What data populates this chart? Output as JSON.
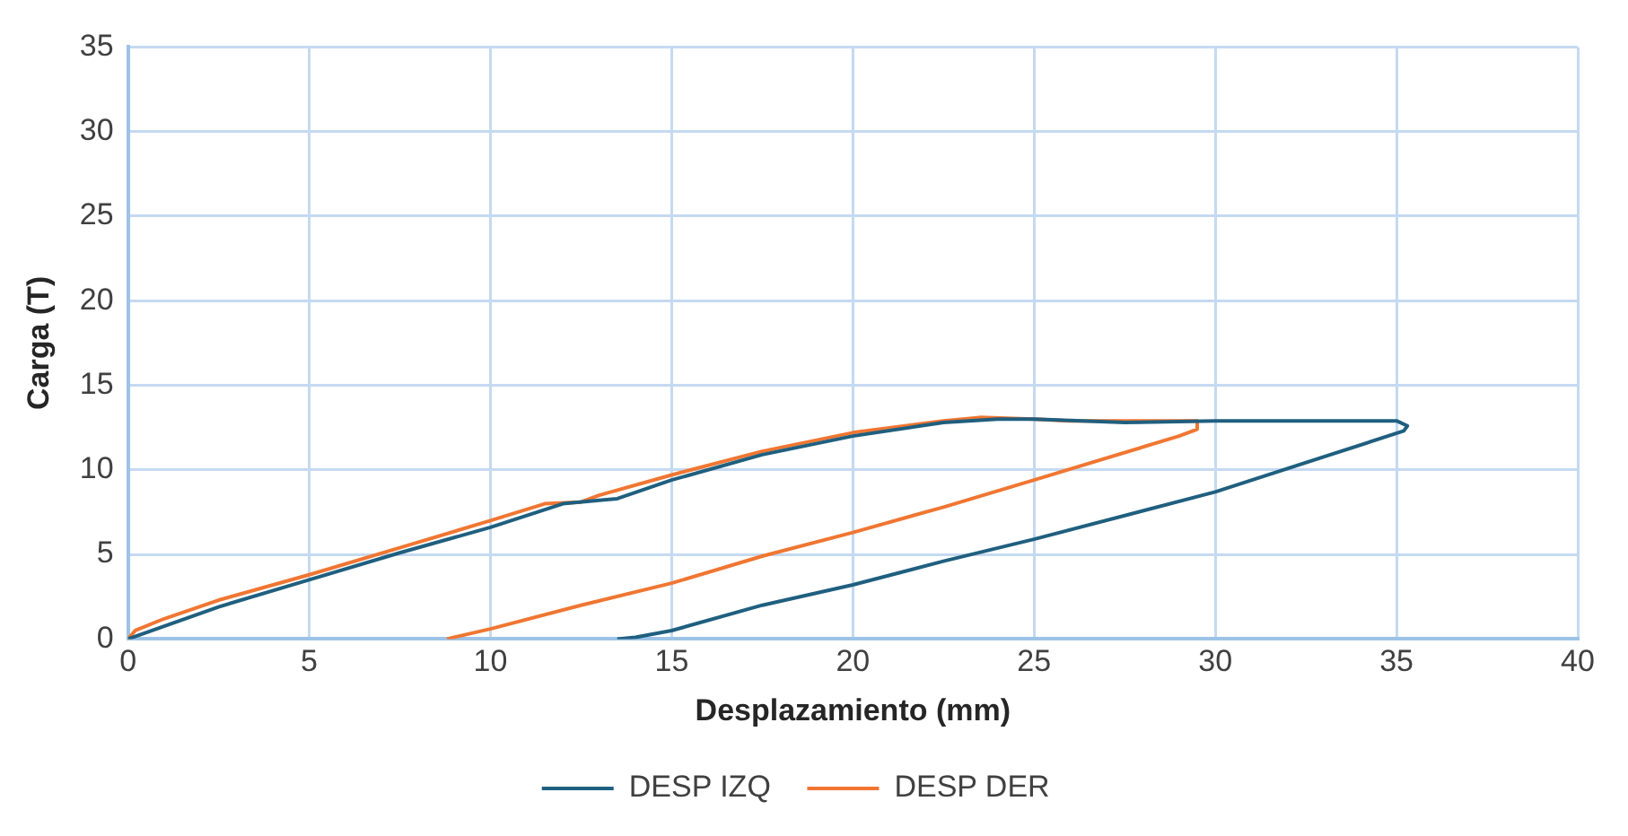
{
  "chart_data": {
    "type": "line",
    "xlabel": "Desplazamiento (mm)",
    "ylabel": "Carga (T)",
    "xlim": [
      0,
      40
    ],
    "xticks": [
      0,
      5,
      10,
      15,
      20,
      25,
      30,
      35,
      40
    ],
    "ylim": [
      0,
      35
    ],
    "yticks": [
      0,
      5,
      10,
      15,
      20,
      25,
      30,
      35
    ],
    "grid": true,
    "legend": "bottom",
    "marker": "none",
    "line_style": "solid",
    "series": [
      {
        "name": "DESP IZQ",
        "color": "#1f5f7f",
        "x": [
          0,
          2.5,
          5,
          7.5,
          10,
          12,
          13,
          13.5,
          15,
          17.5,
          20,
          22.5,
          24,
          25,
          27.5,
          30,
          35,
          35.3,
          35.2,
          30,
          25,
          22.5,
          20,
          17.5,
          15,
          14,
          13.5
        ],
        "values": [
          0,
          1.9,
          3.5,
          5.1,
          6.6,
          8.0,
          8.2,
          8.3,
          9.4,
          10.9,
          12.0,
          12.8,
          13.0,
          13.0,
          12.8,
          12.9,
          12.9,
          12.6,
          12.3,
          8.7,
          5.9,
          4.6,
          3.2,
          2.0,
          0.5,
          0.1,
          0
        ]
      },
      {
        "name": "DESP DER",
        "color": "#f07632",
        "x": [
          0,
          0.2,
          1,
          2.5,
          5,
          7.5,
          10,
          11.5,
          12.5,
          13,
          15,
          17.5,
          20,
          22.5,
          23.5,
          25,
          26,
          29.5,
          29.5,
          29,
          25,
          22.5,
          20,
          17.5,
          15,
          12.5,
          10,
          9,
          8.8
        ],
        "values": [
          0,
          0.5,
          1.2,
          2.3,
          3.8,
          5.4,
          7.0,
          8.0,
          8.1,
          8.5,
          9.7,
          11.1,
          12.2,
          12.9,
          13.1,
          13.0,
          12.9,
          12.9,
          12.4,
          12.0,
          9.4,
          7.8,
          6.3,
          4.9,
          3.3,
          2.0,
          0.6,
          0.1,
          0
        ]
      }
    ]
  }
}
